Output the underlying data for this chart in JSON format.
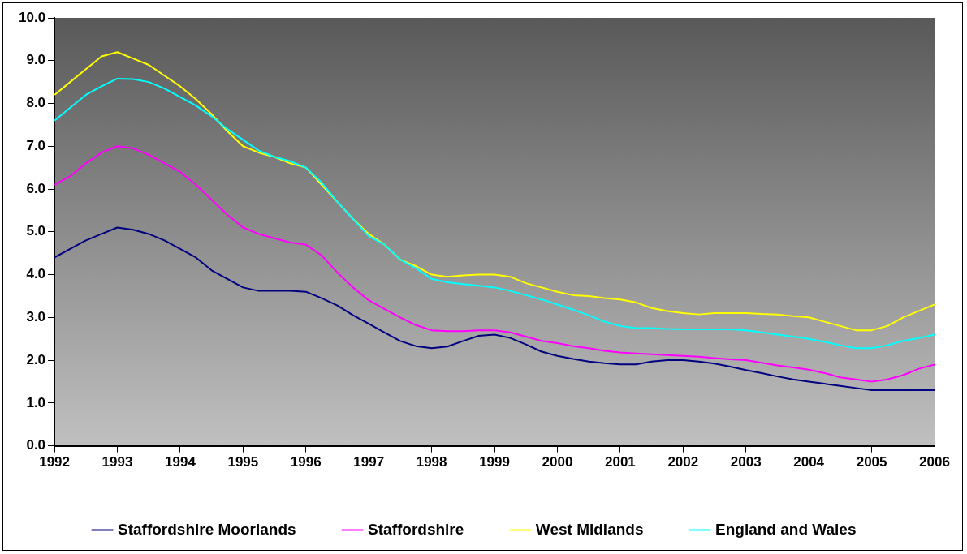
{
  "chart_data": {
    "type": "line",
    "x": [
      1992,
      1992.25,
      1992.5,
      1992.75,
      1993,
      1993.25,
      1993.5,
      1993.75,
      1994,
      1994.25,
      1994.5,
      1994.75,
      1995,
      1995.25,
      1995.5,
      1995.75,
      1996,
      1996.25,
      1996.5,
      1996.75,
      1997,
      1997.25,
      1997.5,
      1997.75,
      1998,
      1998.25,
      1998.5,
      1998.75,
      1999,
      1999.25,
      1999.5,
      1999.75,
      2000,
      2000.25,
      2000.5,
      2000.75,
      2001,
      2001.25,
      2001.5,
      2001.75,
      2002,
      2002.25,
      2002.5,
      2002.75,
      2003,
      2003.25,
      2003.5,
      2003.75,
      2004,
      2004.25,
      2004.5,
      2004.75,
      2005,
      2005.25,
      2005.5,
      2005.75,
      2006
    ],
    "series": [
      {
        "name": "Staffordshire Moorlands",
        "color": "#000080",
        "values": [
          4.4,
          4.6,
          4.8,
          4.95,
          5.1,
          5.05,
          4.95,
          4.8,
          4.6,
          4.4,
          4.1,
          3.9,
          3.7,
          3.62,
          3.62,
          3.62,
          3.6,
          3.45,
          3.28,
          3.05,
          2.85,
          2.65,
          2.45,
          2.33,
          2.28,
          2.32,
          2.45,
          2.57,
          2.6,
          2.52,
          2.37,
          2.2,
          2.1,
          2.03,
          1.97,
          1.93,
          1.9,
          1.9,
          1.97,
          2.0,
          2.0,
          1.97,
          1.92,
          1.85,
          1.77,
          1.7,
          1.62,
          1.55,
          1.5,
          1.45,
          1.4,
          1.35,
          1.3,
          1.3,
          1.3,
          1.3,
          1.3
        ]
      },
      {
        "name": "Staffordshire",
        "color": "#ff00ff",
        "values": [
          6.1,
          6.3,
          6.6,
          6.85,
          7.0,
          6.95,
          6.8,
          6.6,
          6.4,
          6.1,
          5.75,
          5.4,
          5.1,
          4.95,
          4.85,
          4.75,
          4.7,
          4.45,
          4.05,
          3.7,
          3.4,
          3.2,
          3.0,
          2.82,
          2.7,
          2.68,
          2.68,
          2.7,
          2.7,
          2.65,
          2.55,
          2.45,
          2.4,
          2.33,
          2.28,
          2.22,
          2.18,
          2.16,
          2.14,
          2.12,
          2.1,
          2.08,
          2.05,
          2.02,
          2.0,
          1.94,
          1.88,
          1.83,
          1.78,
          1.7,
          1.6,
          1.55,
          1.5,
          1.55,
          1.65,
          1.8,
          1.9
        ]
      },
      {
        "name": "West Midlands",
        "color": "#ffff00",
        "values": [
          8.2,
          8.5,
          8.8,
          9.1,
          9.2,
          9.05,
          8.9,
          8.65,
          8.4,
          8.1,
          7.75,
          7.35,
          7.0,
          6.85,
          6.75,
          6.6,
          6.5,
          6.1,
          5.7,
          5.3,
          4.95,
          4.7,
          4.35,
          4.2,
          4.0,
          3.95,
          3.98,
          4.0,
          4.0,
          3.95,
          3.8,
          3.7,
          3.6,
          3.52,
          3.5,
          3.45,
          3.42,
          3.35,
          3.22,
          3.15,
          3.1,
          3.07,
          3.1,
          3.1,
          3.1,
          3.08,
          3.07,
          3.03,
          3.0,
          2.9,
          2.8,
          2.7,
          2.7,
          2.8,
          3.0,
          3.15,
          3.3
        ]
      },
      {
        "name": "England and Wales",
        "color": "#00ffff",
        "values": [
          7.6,
          7.9,
          8.2,
          8.4,
          8.58,
          8.57,
          8.5,
          8.35,
          8.15,
          7.95,
          7.7,
          7.4,
          7.15,
          6.9,
          6.75,
          6.65,
          6.5,
          6.15,
          5.7,
          5.3,
          4.9,
          4.7,
          4.35,
          4.15,
          3.9,
          3.82,
          3.78,
          3.74,
          3.7,
          3.62,
          3.52,
          3.42,
          3.3,
          3.18,
          3.05,
          2.9,
          2.8,
          2.75,
          2.75,
          2.73,
          2.72,
          2.72,
          2.72,
          2.72,
          2.7,
          2.65,
          2.6,
          2.55,
          2.5,
          2.43,
          2.35,
          2.28,
          2.28,
          2.35,
          2.45,
          2.52,
          2.6
        ]
      }
    ],
    "xlim": [
      1992,
      2006
    ],
    "xticks": [
      1992,
      1993,
      1994,
      1995,
      1996,
      1997,
      1998,
      1999,
      2000,
      2001,
      2002,
      2003,
      2004,
      2005,
      2006
    ],
    "ylim": [
      0,
      10
    ],
    "yticks": [
      {
        "value": 0,
        "label": "0.0"
      },
      {
        "value": 1,
        "label": "1.0"
      },
      {
        "value": 2,
        "label": "2.0"
      },
      {
        "value": 3,
        "label": "3.0"
      },
      {
        "value": 4,
        "label": "4.0"
      },
      {
        "value": 5,
        "label": "5.0"
      },
      {
        "value": 6,
        "label": "6.0"
      },
      {
        "value": 7,
        "label": "7.0"
      },
      {
        "value": 8,
        "label": "8.0"
      },
      {
        "value": 9,
        "label": "9.0"
      },
      {
        "value": 10,
        "label": "10.0"
      }
    ],
    "grid": false,
    "legend": "bottom",
    "marker": "none",
    "line_style": "solid"
  }
}
